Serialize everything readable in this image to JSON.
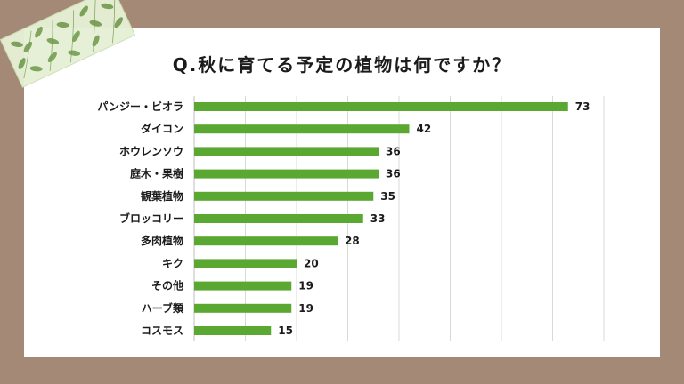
{
  "chart_data": {
    "type": "bar",
    "orientation": "horizontal",
    "title": "Q.秋に育てる予定の植物は何ですか？",
    "categories": [
      "パンジー・ビオラ",
      "ダイコン",
      "ホウレンソウ",
      "庭木・果樹",
      "観葉植物",
      "ブロッコリー",
      "多肉植物",
      "キク",
      "その他",
      "ハーブ類",
      "コスモス"
    ],
    "values": [
      73,
      42,
      36,
      36,
      35,
      33,
      28,
      20,
      19,
      19,
      15
    ],
    "xlim": [
      0,
      80
    ],
    "xticks_step": 10,
    "grid": true,
    "bar_color": "#5aa832",
    "grid_color": "#d9d9d9",
    "data_labels": true
  },
  "colors": {
    "background": "#a48a76",
    "paper": "#ffffff",
    "tape": "#e6f0d5",
    "leaf": "#6f9a4c"
  }
}
